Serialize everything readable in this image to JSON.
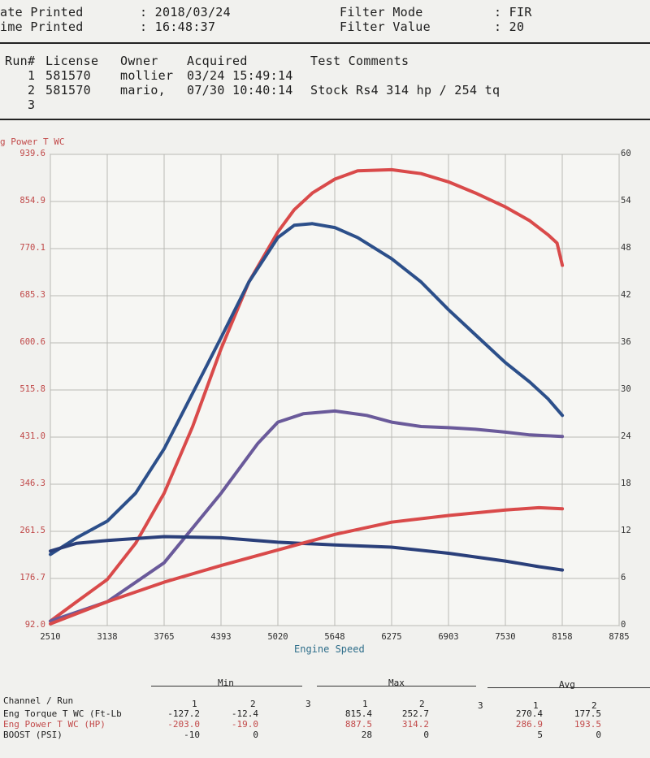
{
  "header": {
    "date_label": "ate Printed",
    "date_value": ": 2018/03/24",
    "time_label": "ime Printed",
    "time_value": ": 16:48:37",
    "filter_mode_label": "Filter Mode",
    "filter_mode_value": ": FIR",
    "filter_value_label": "Filter Value",
    "filter_value_value": ": 20"
  },
  "runs": {
    "columns": [
      "Run#",
      "License",
      "Owner",
      "Acquired",
      "Test Comments"
    ],
    "rows": [
      {
        "run": "1",
        "license": "581570",
        "owner": "mollier",
        "acquired": "03/24 15:49:14",
        "comment": ""
      },
      {
        "run": "2",
        "license": "581570",
        "owner": "mario,",
        "acquired": "07/30 10:40:14",
        "comment": "Stock Rs4 314 hp / 254 tq"
      },
      {
        "run": "3",
        "license": "",
        "owner": "",
        "acquired": "",
        "comment": ""
      }
    ]
  },
  "chart_data": {
    "type": "line",
    "left_axis_title": "g Power T WC",
    "xlabel": "Engine Speed",
    "x_ticks": [
      "2510",
      "3138",
      "3765",
      "4393",
      "5020",
      "5648",
      "6275",
      "6903",
      "7530",
      "8158",
      "8785"
    ],
    "y_left_ticks": [
      "92.0",
      "176.7",
      "261.5",
      "346.3",
      "431.0",
      "515.8",
      "600.6",
      "685.3",
      "770.1",
      "854.9",
      "939.6"
    ],
    "y_right_ticks": [
      "0",
      "6",
      "12",
      "18",
      "24",
      "30",
      "36",
      "42",
      "48",
      "54",
      "60"
    ],
    "xlim": [
      2510,
      8785
    ],
    "ylim": [
      92.0,
      939.6
    ],
    "grid": true,
    "colors": {
      "red": "#d94a4a",
      "blue": "#2c4f8a",
      "purple": "#6a5a9a",
      "darkblue": "#2a3f7a"
    },
    "series": [
      {
        "color": "red",
        "x": [
          2510,
          2800,
          3138,
          3450,
          3765,
          4080,
          4393,
          4700,
          5020,
          5200,
          5400,
          5648,
          5900,
          6275,
          6600,
          6903,
          7200,
          7530,
          7800,
          8000,
          8100,
          8158
        ],
        "y": [
          100,
          135,
          175,
          240,
          330,
          450,
          590,
          710,
          800,
          840,
          870,
          895,
          910,
          912,
          905,
          890,
          870,
          845,
          820,
          795,
          780,
          740
        ]
      },
      {
        "color": "blue",
        "x": [
          2510,
          2800,
          3138,
          3450,
          3765,
          4080,
          4393,
          4700,
          5020,
          5200,
          5400,
          5648,
          5900,
          6275,
          6600,
          6903,
          7200,
          7530,
          7800,
          8000,
          8158
        ],
        "y": [
          220,
          250,
          280,
          330,
          410,
          510,
          610,
          710,
          790,
          812,
          815,
          808,
          790,
          752,
          710,
          660,
          615,
          565,
          530,
          500,
          470
        ]
      },
      {
        "color": "purple",
        "x": [
          2510,
          3138,
          3765,
          4393,
          4800,
          5020,
          5300,
          5648,
          6000,
          6275,
          6600,
          6903,
          7200,
          7530,
          7800,
          8158
        ],
        "y": [
          100,
          135,
          205,
          330,
          420,
          458,
          473,
          478,
          470,
          458,
          450,
          448,
          445,
          440,
          435,
          432
        ]
      },
      {
        "color": "darkblue",
        "x": [
          2510,
          2800,
          3138,
          3765,
          4393,
          5020,
          5648,
          6275,
          6903,
          7530,
          7900,
          8158
        ],
        "y": [
          226,
          240,
          245,
          252,
          250,
          242,
          237,
          233,
          222,
          208,
          198,
          192
        ]
      },
      {
        "color": "red",
        "x": [
          2510,
          3138,
          3765,
          4393,
          5020,
          5648,
          6275,
          6903,
          7530,
          7900,
          8158
        ],
        "y": [
          95,
          135,
          170,
          200,
          228,
          256,
          278,
          290,
          300,
          304,
          302
        ]
      }
    ]
  },
  "stats": {
    "min_label": "Min",
    "max_label": "Max",
    "avg_label": "Avg",
    "channel_run_label": "Channel / Run",
    "run_numbers": [
      "1",
      "2",
      "3"
    ],
    "rows": [
      {
        "channel": "Eng Torque T WC (Ft-Lb",
        "min1": "-127.2",
        "min2": "-12.4",
        "max1": "815.4",
        "max2": "252.7",
        "avg1": "270.4",
        "avg2": "177.5",
        "color": "#1d1d1d"
      },
      {
        "channel": "Eng Power T WC (HP)",
        "min1": "-203.0",
        "min2": "-19.0",
        "max1": "887.5",
        "max2": "314.2",
        "avg1": "286.9",
        "avg2": "193.5",
        "color": "#c24a4a"
      },
      {
        "channel": "BOOST (PSI)",
        "min1": "-10",
        "min2": "0",
        "max1": "28",
        "max2": "0",
        "avg1": "5",
        "avg2": "0",
        "color": "#1d1d1d"
      }
    ]
  }
}
